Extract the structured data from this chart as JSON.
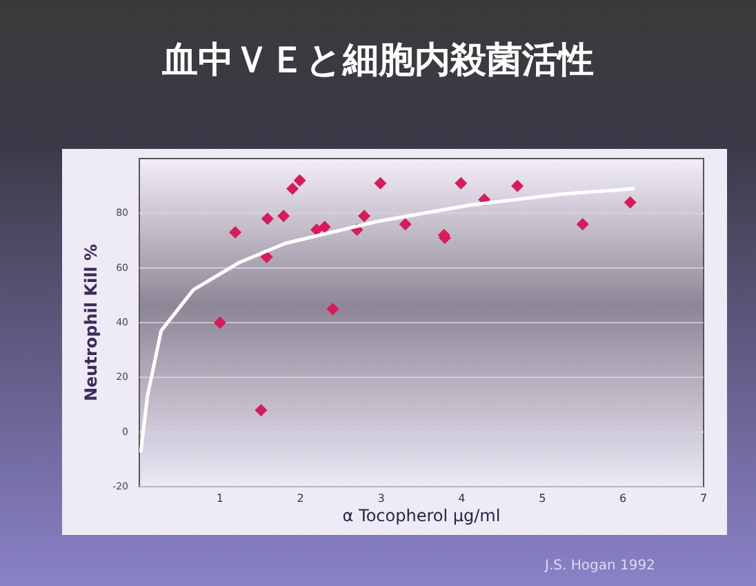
{
  "chart_data": {
    "type": "scatter",
    "title": "血中ＶＥと細胞内殺菌活性",
    "xlabel": "α  Tocopherol µg/ml",
    "ylabel": "Neutrophil Kill %",
    "xlim": [
      0,
      7
    ],
    "xticks": [
      1,
      2,
      3,
      4,
      5,
      6,
      7
    ],
    "ylim": [
      -20,
      100
    ],
    "yticks": [
      -20,
      0,
      20,
      40,
      60,
      80
    ],
    "grid": "y",
    "marker": "diamond",
    "annotations": [
      "J.S. Hogan  1992"
    ],
    "series": [
      {
        "color": "#d81b5a",
        "x": [
          1.19,
          1.0,
          1.51,
          1.59,
          1.58,
          1.79,
          1.9,
          1.99,
          2.2,
          2.3,
          2.4,
          2.7,
          2.79,
          2.99,
          3.3,
          3.78,
          3.79,
          3.99,
          4.28,
          4.69,
          5.5,
          6.09
        ],
        "values": [
          73,
          40,
          8,
          78,
          64,
          79,
          89,
          92,
          74,
          75,
          45,
          74,
          79,
          91,
          76,
          72,
          71,
          91,
          85,
          90,
          76,
          84
        ]
      },
      {
        "type": "line",
        "marker": "none",
        "color": "#ffffff",
        "x": [
          0.02,
          0.1,
          0.27,
          0.67,
          1.24,
          1.81,
          2.95,
          4.1,
          5.24,
          6.13
        ],
        "values": [
          -7,
          13,
          37,
          52,
          62,
          69,
          77,
          83,
          87,
          89
        ]
      }
    ]
  }
}
